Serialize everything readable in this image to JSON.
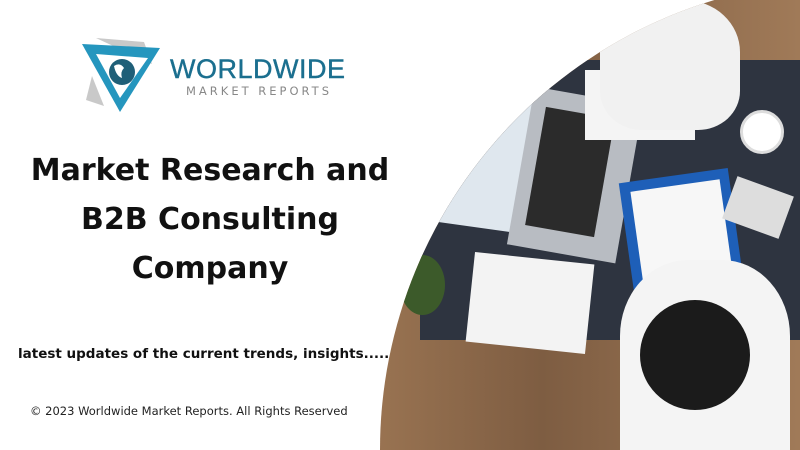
{
  "logo": {
    "brand": "WORLDWIDE",
    "subtitle": "MARKET REPORTS"
  },
  "headline": [
    "Market Research and",
    "B2B Consulting",
    "Company"
  ],
  "tagline": "latest updates of the current trends, insights........",
  "copyright": "© 2023 Worldwide Market Reports. All Rights Reserved",
  "colors": {
    "brand": "#1b6f8f",
    "logo_accent": "#2596be"
  }
}
